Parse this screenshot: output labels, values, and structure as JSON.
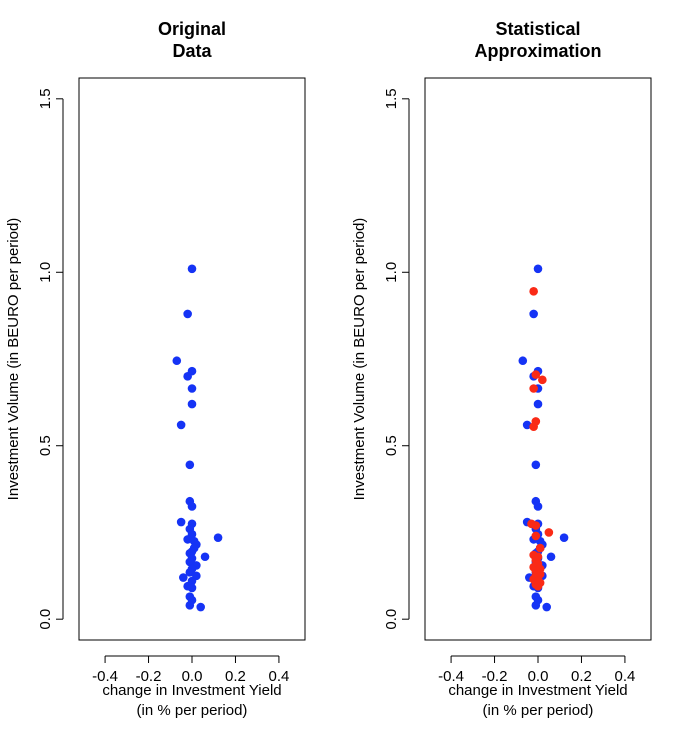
{
  "colors": {
    "original": "#1533f5",
    "simulated": "#fa2a16"
  },
  "chart_data": [
    {
      "type": "scatter",
      "title": "Original\nData",
      "xlabel": "change in Investment Yield\n(in % per period)",
      "ylabel": "Investment Volume (in BEURO per period)",
      "xlim": [
        -0.52,
        0.52
      ],
      "ylim": [
        -0.06,
        1.56
      ],
      "xticks": [
        "-0.4",
        "-0.2",
        "0.0",
        "0.2",
        "0.4"
      ],
      "yticks": [
        "0.0",
        "0.5",
        "1.0",
        "1.5"
      ],
      "series": [
        {
          "color": "#1533f5",
          "points": [
            [
              0.0,
              1.01
            ],
            [
              -0.02,
              0.88
            ],
            [
              -0.07,
              0.745
            ],
            [
              0.0,
              0.715
            ],
            [
              -0.02,
              0.7
            ],
            [
              0.0,
              0.665
            ],
            [
              0.0,
              0.62
            ],
            [
              -0.05,
              0.56
            ],
            [
              -0.01,
              0.445
            ],
            [
              -0.01,
              0.34
            ],
            [
              0.0,
              0.325
            ],
            [
              -0.05,
              0.28
            ],
            [
              0.0,
              0.275
            ],
            [
              -0.01,
              0.26
            ],
            [
              0.0,
              0.245
            ],
            [
              0.12,
              0.235
            ],
            [
              -0.02,
              0.23
            ],
            [
              0.01,
              0.225
            ],
            [
              0.02,
              0.215
            ],
            [
              0.01,
              0.205
            ],
            [
              0.0,
              0.195
            ],
            [
              -0.01,
              0.19
            ],
            [
              0.06,
              0.18
            ],
            [
              0.0,
              0.175
            ],
            [
              -0.01,
              0.165
            ],
            [
              0.02,
              0.155
            ],
            [
              0.0,
              0.145
            ],
            [
              -0.01,
              0.135
            ],
            [
              0.02,
              0.125
            ],
            [
              -0.04,
              0.12
            ],
            [
              0.0,
              0.11
            ],
            [
              -0.02,
              0.095
            ],
            [
              0.0,
              0.09
            ],
            [
              -0.01,
              0.065
            ],
            [
              0.0,
              0.055
            ],
            [
              -0.01,
              0.04
            ],
            [
              0.04,
              0.035
            ]
          ]
        }
      ]
    },
    {
      "type": "scatter",
      "title": "Statistical\nApproximation",
      "xlabel": "change in Investment Yield\n(in % per period)",
      "ylabel": "Investment Volume (in BEURO per period)",
      "xlim": [
        -0.52,
        0.52
      ],
      "ylim": [
        -0.06,
        1.56
      ],
      "xticks": [
        "-0.4",
        "-0.2",
        "0.0",
        "0.2",
        "0.4"
      ],
      "yticks": [
        "0.0",
        "0.5",
        "1.0",
        "1.5"
      ],
      "series": [
        {
          "color": "#1533f5",
          "points": [
            [
              0.0,
              1.01
            ],
            [
              -0.02,
              0.88
            ],
            [
              -0.07,
              0.745
            ],
            [
              0.0,
              0.715
            ],
            [
              -0.02,
              0.7
            ],
            [
              0.0,
              0.665
            ],
            [
              0.0,
              0.62
            ],
            [
              -0.05,
              0.56
            ],
            [
              -0.01,
              0.445
            ],
            [
              -0.01,
              0.34
            ],
            [
              0.0,
              0.325
            ],
            [
              -0.05,
              0.28
            ],
            [
              0.0,
              0.275
            ],
            [
              -0.01,
              0.26
            ],
            [
              0.0,
              0.245
            ],
            [
              0.12,
              0.235
            ],
            [
              -0.02,
              0.23
            ],
            [
              0.01,
              0.225
            ],
            [
              0.02,
              0.215
            ],
            [
              0.01,
              0.205
            ],
            [
              0.0,
              0.195
            ],
            [
              -0.01,
              0.19
            ],
            [
              0.06,
              0.18
            ],
            [
              0.0,
              0.175
            ],
            [
              -0.01,
              0.165
            ],
            [
              0.02,
              0.155
            ],
            [
              0.0,
              0.145
            ],
            [
              -0.01,
              0.135
            ],
            [
              0.02,
              0.125
            ],
            [
              -0.04,
              0.12
            ],
            [
              0.0,
              0.11
            ],
            [
              -0.02,
              0.095
            ],
            [
              0.0,
              0.09
            ],
            [
              -0.01,
              0.065
            ],
            [
              0.0,
              0.055
            ],
            [
              -0.01,
              0.04
            ],
            [
              0.04,
              0.035
            ]
          ]
        },
        {
          "color": "#fa2a16",
          "points": [
            [
              -0.02,
              0.945
            ],
            [
              -0.01,
              0.705
            ],
            [
              0.02,
              0.69
            ],
            [
              -0.02,
              0.665
            ],
            [
              -0.01,
              0.57
            ],
            [
              -0.02,
              0.555
            ],
            [
              -0.03,
              0.275
            ],
            [
              -0.01,
              0.27
            ],
            [
              0.05,
              0.25
            ],
            [
              -0.01,
              0.24
            ],
            [
              0.01,
              0.205
            ],
            [
              -0.02,
              0.185
            ],
            [
              0.0,
              0.18
            ],
            [
              -0.01,
              0.17
            ],
            [
              0.0,
              0.16
            ],
            [
              -0.02,
              0.15
            ],
            [
              0.01,
              0.145
            ],
            [
              -0.01,
              0.14
            ],
            [
              0.0,
              0.135
            ],
            [
              0.01,
              0.13
            ],
            [
              -0.01,
              0.125
            ],
            [
              0.0,
              0.12
            ],
            [
              -0.02,
              0.115
            ],
            [
              0.0,
              0.11
            ],
            [
              0.01,
              0.105
            ],
            [
              -0.01,
              0.1
            ],
            [
              0.0,
              0.095
            ]
          ]
        }
      ]
    }
  ]
}
